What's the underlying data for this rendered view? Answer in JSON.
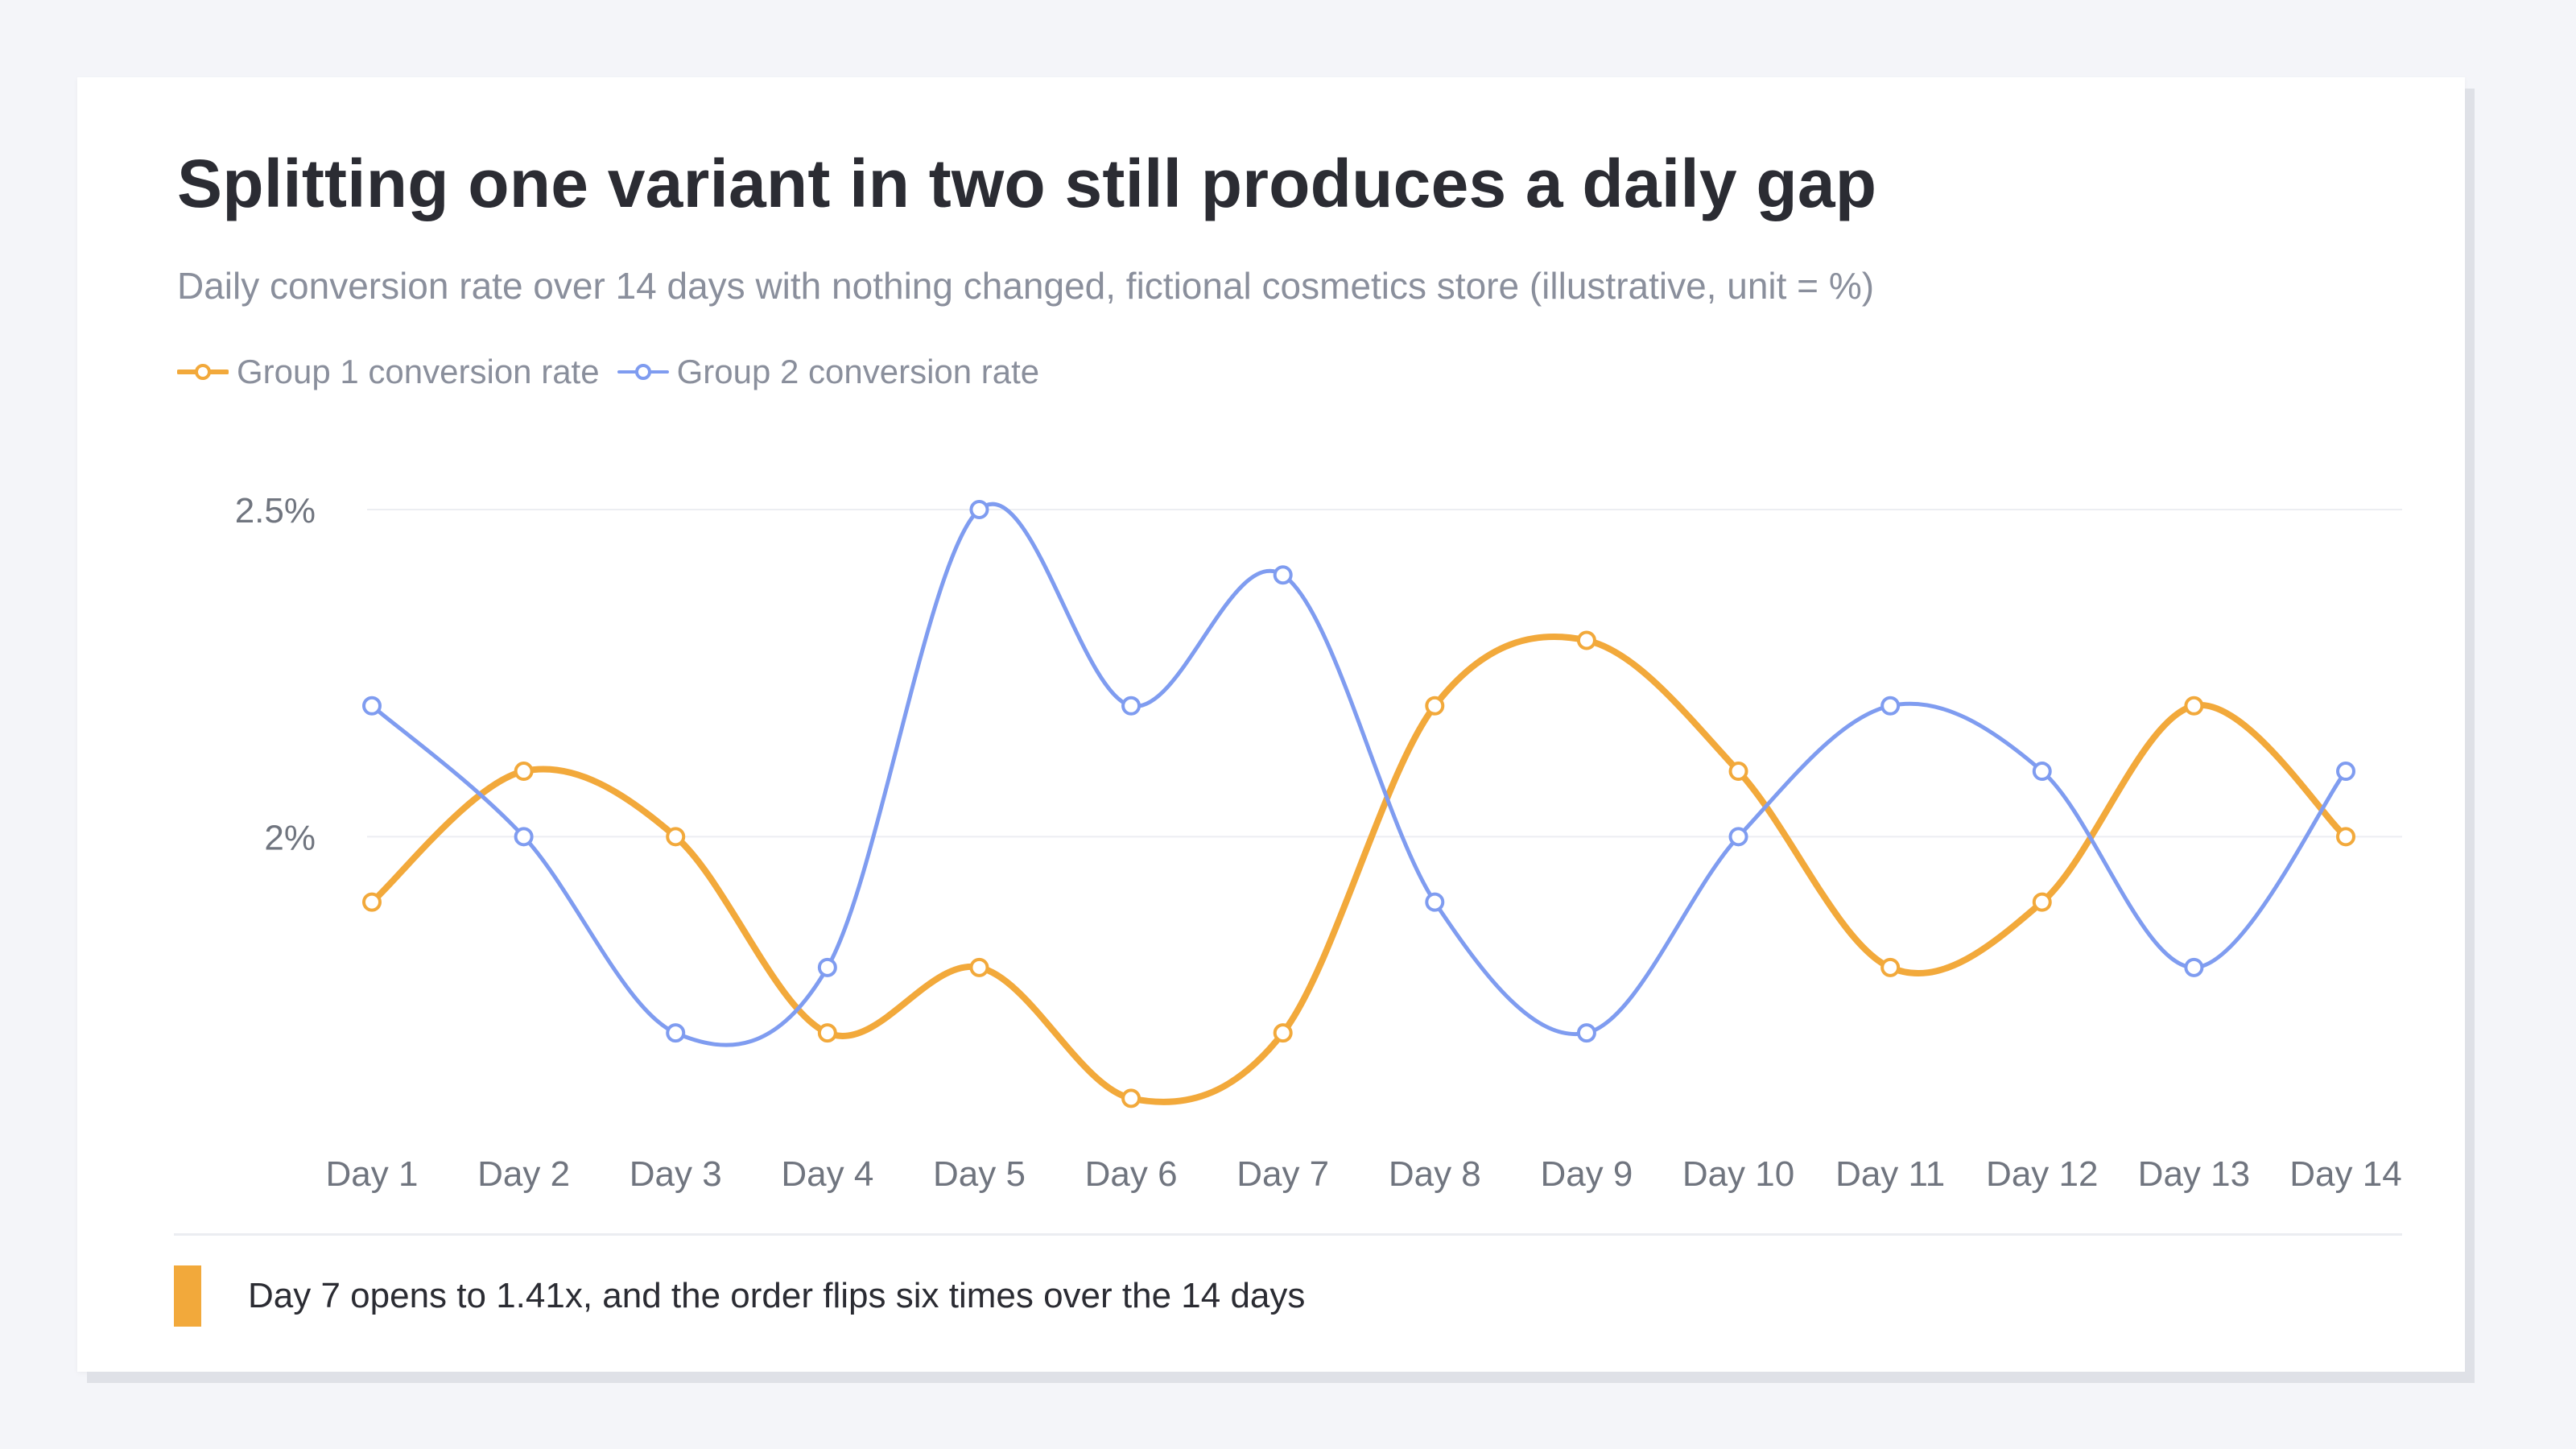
{
  "title": "Splitting one variant in two still produces a daily gap",
  "subtitle": "Daily conversion rate over 14 days with nothing changed, fictional cosmetics store (illustrative, unit = %)",
  "note": {
    "text": "Day 7 opens to 1.41x, and the order flips six times over the 14 days",
    "color": "#f2a93b"
  },
  "chart_data": {
    "type": "line",
    "categories": [
      "Day 1",
      "Day 2",
      "Day 3",
      "Day 4",
      "Day 5",
      "Day 6",
      "Day 7",
      "Day 8",
      "Day 9",
      "Day 10",
      "Day 11",
      "Day 12",
      "Day 13",
      "Day 14"
    ],
    "series": [
      {
        "name": "Group 1 conversion rate",
        "color": "#f2a93b",
        "values": [
          1.9,
          2.1,
          2.0,
          1.7,
          1.8,
          1.6,
          1.7,
          2.2,
          2.3,
          2.1,
          1.8,
          1.9,
          2.2,
          2.0
        ]
      },
      {
        "name": "Group 2 conversion rate",
        "color": "#7f9cf0",
        "values": [
          2.2,
          2.0,
          1.7,
          1.8,
          2.5,
          2.2,
          2.4,
          1.9,
          1.7,
          2.0,
          2.2,
          2.1,
          1.8,
          2.1
        ]
      }
    ],
    "yticks": [
      {
        "value": 2.0,
        "label": "2%"
      },
      {
        "value": 2.5,
        "label": "2.5%"
      }
    ],
    "ylim": [
      1.55,
      2.5
    ],
    "grid": true,
    "legend": "top-left",
    "smooth": true
  }
}
